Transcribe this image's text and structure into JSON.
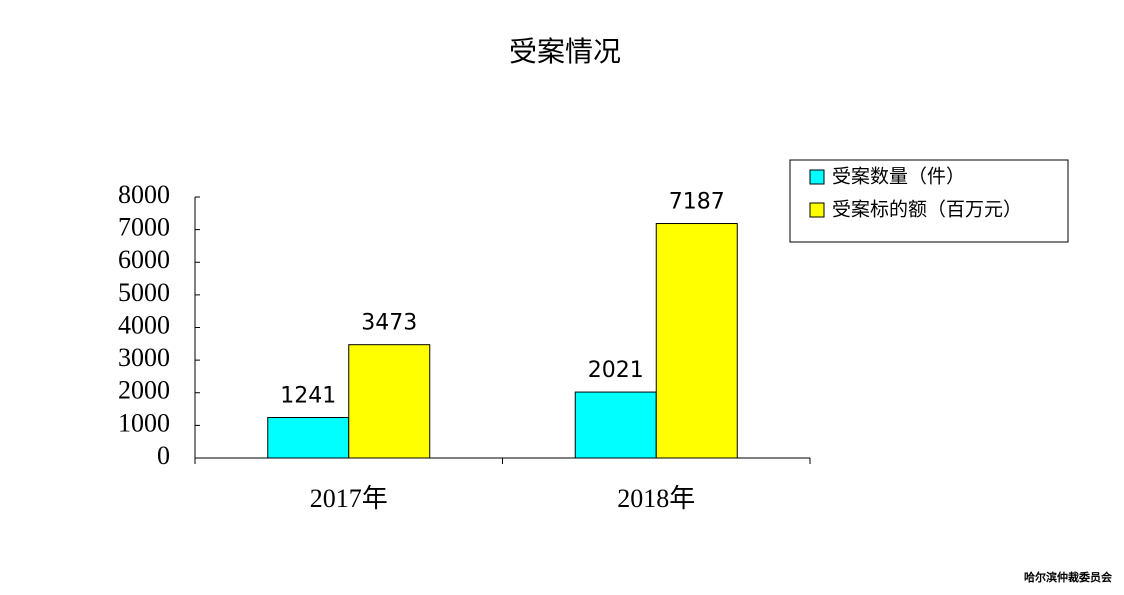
{
  "chart_data": {
    "type": "bar",
    "title": "受案情况",
    "categories": [
      "2017年",
      "2018年"
    ],
    "series": [
      {
        "name": "受案数量（件）",
        "color": "#00ffff",
        "values": [
          1241,
          2021
        ]
      },
      {
        "name": "受案标的额（百万元）",
        "color": "#ffff00",
        "values": [
          3473,
          7187
        ]
      }
    ],
    "ylim": [
      0,
      8000
    ],
    "yticks": [
      0,
      1000,
      2000,
      3000,
      4000,
      5000,
      6000,
      7000,
      8000
    ],
    "grid": false,
    "legend": "top-right"
  },
  "footer": "哈尔滨仲裁委员会"
}
